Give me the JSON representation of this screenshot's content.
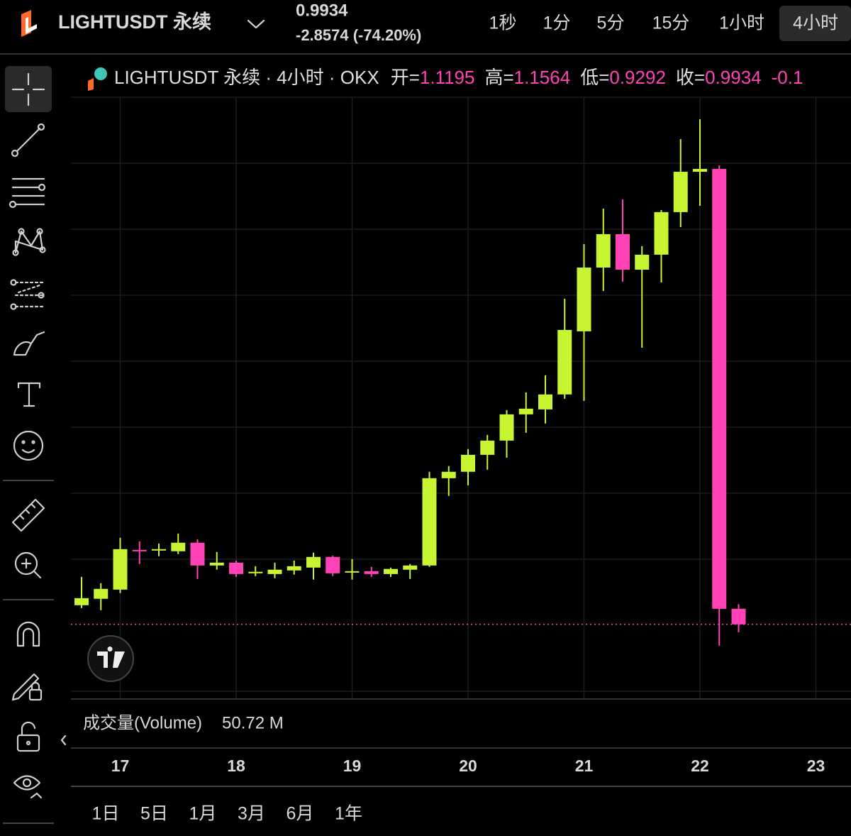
{
  "header": {
    "symbol": "LIGHTUSDT 永续",
    "change": "-2.8574 (-74.20%)"
  },
  "timeframes": [
    "1秒",
    "1分",
    "5分",
    "15分",
    "1小时",
    "4小时"
  ],
  "active_timeframe": 5,
  "chart_data": {
    "type": "candlestick",
    "title": "LIGHTUSDT 永续 · 4小时 · OKX",
    "legend_labels": {
      "open": "开=",
      "high": "高=",
      "low": "低=",
      "close": "收="
    },
    "change_partial": "-0.1",
    "up_color": "#c8f531",
    "down_color": "#ff42b6",
    "categories": [
      null,
      null,
      null,
      null,
      null,
      null,
      null,
      null,
      null,
      null,
      null,
      null,
      null,
      null,
      null,
      null,
      null,
      null,
      null,
      null,
      null,
      null,
      null,
      null,
      null,
      null,
      null,
      null,
      null,
      null,
      null,
      null,
      null,
      null,
      null
    ],
    "open": [
      1.148,
      1.2,
      1.274,
      1.595,
      1.59,
      1.584,
      1.653,
      1.469,
      1.492,
      1.406,
      1.4,
      1.429,
      1.452,
      1.538,
      1.412,
      1.423,
      1.4,
      1.435,
      1.469,
      2.174,
      2.226,
      2.363,
      2.478,
      2.69,
      2.73,
      2.851,
      3.361,
      3.876,
      4.146,
      3.859,
      3.98,
      4.324,
      4.65,
      4.673,
      1.1195
    ],
    "high": [
      1.377,
      1.326,
      1.693,
      1.664,
      1.647,
      1.727,
      1.681,
      1.578,
      1.509,
      1.463,
      1.492,
      1.509,
      1.572,
      1.549,
      1.521,
      1.458,
      1.452,
      1.481,
      2.226,
      2.272,
      2.409,
      2.524,
      2.724,
      2.868,
      3.005,
      3.624,
      4.066,
      4.352,
      4.427,
      4.049,
      4.341,
      4.914,
      5.075,
      4.702,
      1.1564
    ],
    "low": [
      1.125,
      1.108,
      1.246,
      1.481,
      1.544,
      1.561,
      1.36,
      1.435,
      1.377,
      1.383,
      1.366,
      1.395,
      1.355,
      1.383,
      1.355,
      1.377,
      1.377,
      1.36,
      1.458,
      2.031,
      2.117,
      2.243,
      2.34,
      2.541,
      2.616,
      2.816,
      2.799,
      3.687,
      3.762,
      3.229,
      3.756,
      4.203,
      4.375,
      0.821,
      0.9292
    ],
    "close": [
      1.205,
      1.28,
      1.601,
      1.584,
      1.601,
      1.653,
      1.469,
      1.492,
      1.4,
      1.418,
      1.435,
      1.463,
      1.538,
      1.406,
      1.423,
      1.4,
      1.441,
      1.469,
      2.174,
      2.226,
      2.363,
      2.478,
      2.69,
      2.736,
      2.851,
      3.372,
      3.876,
      4.146,
      3.859,
      3.98,
      4.324,
      4.65,
      4.673,
      1.119,
      0.9934
    ],
    "ylim": [
      0.39,
      5.235
    ],
    "xticks": [
      "17",
      "18",
      "19",
      "20",
      "21",
      "22",
      "23"
    ]
  },
  "volume": {
    "label": "成交量(Volume)",
    "value": "50.72 M"
  },
  "ranges": [
    "1日",
    "5日",
    "1月",
    "3月",
    "6月",
    "1年"
  ]
}
